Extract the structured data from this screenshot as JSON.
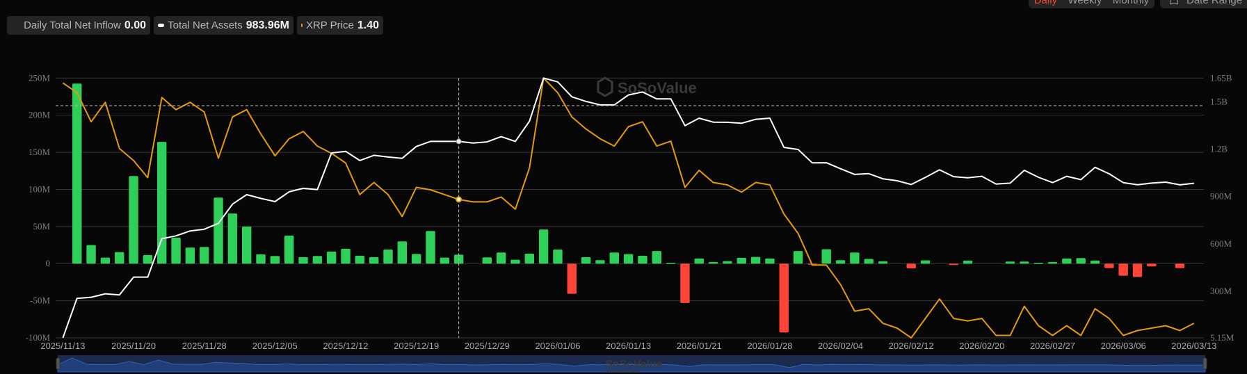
{
  "legend": {
    "inflow_label": "Daily Total Net Inflow",
    "inflow_value": "0.00",
    "assets_label": "Total Net Assets",
    "assets_value": "983.96M",
    "price_label": "XRP Price",
    "price_value": "1.40"
  },
  "toolbar": {
    "daily": "Daily",
    "weekly": "Weekly",
    "monthly": "Monthly",
    "active": "Daily",
    "date_range": "Date Range"
  },
  "watermark": {
    "brand": "SoSoValue",
    "site": "sosovalue.com"
  },
  "colors": {
    "inflow_positive": "#2fd05a",
    "inflow_negative": "#ff4438",
    "net_assets": "#ffffff",
    "price": "#e59a0c",
    "navigator": "#1c2b4d"
  },
  "chart_data": {
    "type": "bar+line",
    "grid": true,
    "x_tick_labels": [
      "2025/11/13",
      "2025/11/20",
      "2025/11/28",
      "2025/12/05",
      "2025/12/12",
      "2025/12/19",
      "2025/12/29",
      "2026/01/06",
      "2026/01/13",
      "2026/01/21",
      "2026/01/28",
      "2026/02/04",
      "2026/02/12",
      "2026/02/20",
      "2026/02/27",
      "2026/03/06",
      "2026/03/13"
    ],
    "x_tick_every": 5,
    "left_axis": {
      "ylim": [
        -100,
        250
      ],
      "ticks": [
        250,
        200,
        150,
        100,
        50,
        0,
        -50,
        -100
      ],
      "tick_labels": [
        "250M",
        "200M",
        "150M",
        "100M",
        "50M",
        "0",
        "-50M",
        "-100M"
      ]
    },
    "right_axis": {
      "ylim": [
        5.15,
        1650
      ],
      "ticks": [
        1650,
        1500,
        1200,
        900,
        600,
        300,
        5.15
      ],
      "tick_labels": [
        "1.65B",
        "1.5B",
        "1.2B",
        "900M",
        "600M",
        "300M",
        "5.15M"
      ]
    },
    "highlight_index": 28,
    "series": [
      {
        "name": "Daily Total Net Inflow",
        "type": "bar",
        "axis": "left",
        "unit": "M",
        "values": [
          0,
          242.5,
          25,
          8,
          15.6,
          118,
          11.6,
          164,
          35,
          21.6,
          22.5,
          89,
          67.5,
          50,
          12.5,
          10.3,
          37.8,
          8.8,
          10.3,
          16.3,
          20,
          10.6,
          8.8,
          19,
          30,
          13,
          44,
          8,
          12,
          0,
          8.4,
          15,
          5.3,
          13.4,
          46,
          19,
          -40.6,
          8.8,
          4.7,
          15,
          12.8,
          10.6,
          17,
          1.2,
          -53.1,
          6.9,
          2.2,
          3.4,
          7.8,
          9,
          6.9,
          -92.8,
          16.9,
          -0.5,
          19.4,
          4.7,
          15,
          6.3,
          3.1,
          0,
          -6.3,
          4.4,
          0,
          -1.9,
          4.1,
          0,
          0,
          2.8,
          2.8,
          1.2,
          2.2,
          6.9,
          7.5,
          4.1,
          -6,
          -16.3,
          -17.9,
          -3.8,
          0,
          -6,
          0
        ]
      },
      {
        "name": "Total Net Assets",
        "type": "line",
        "axis": "right",
        "unit": "M",
        "values": [
          5,
          255,
          262,
          284,
          277,
          390,
          390,
          633,
          651,
          682,
          693,
          730,
          852,
          912,
          888,
          868,
          930,
          952,
          944,
          1176,
          1186,
          1128,
          1161,
          1150,
          1142,
          1217,
          1249,
          1249,
          1249,
          1239,
          1246,
          1279,
          1249,
          1377,
          1650,
          1626,
          1531,
          1502,
          1480,
          1480,
          1543,
          1562,
          1518,
          1518,
          1349,
          1396,
          1371,
          1370,
          1364,
          1389,
          1396,
          1211,
          1198,
          1113,
          1114,
          1076,
          1040,
          1045,
          1012,
          1000,
          976,
          1021,
          1069,
          1026,
          1019,
          1028,
          979,
          985,
          1066,
          1022,
          988,
          1028,
          1007,
          1085,
          1044,
          988,
          975,
          985,
          991,
          974,
          984
        ]
      },
      {
        "name": "XRP Price",
        "type": "line",
        "axis": "hidden",
        "values": [
          2.39,
          2.35,
          2.23,
          2.31,
          2.12,
          2.07,
          2.0,
          2.33,
          2.28,
          2.31,
          2.27,
          2.08,
          2.25,
          2.28,
          2.18,
          2.09,
          2.16,
          2.19,
          2.13,
          2.1,
          2.06,
          1.93,
          1.98,
          1.93,
          1.84,
          1.96,
          1.95,
          1.93,
          1.91,
          1.9,
          1.9,
          1.92,
          1.87,
          2.04,
          2.41,
          2.35,
          2.25,
          2.2,
          2.16,
          2.13,
          2.21,
          2.23,
          2.13,
          2.15,
          1.96,
          2.03,
          1.98,
          1.97,
          1.94,
          1.98,
          1.97,
          1.85,
          1.77,
          1.64,
          1.64,
          1.56,
          1.45,
          1.46,
          1.4,
          1.38,
          1.34,
          1.42,
          1.5,
          1.42,
          1.41,
          1.42,
          1.35,
          1.35,
          1.47,
          1.39,
          1.35,
          1.39,
          1.35,
          1.46,
          1.42,
          1.35,
          1.37,
          1.38,
          1.39,
          1.37,
          1.4
        ]
      }
    ]
  }
}
